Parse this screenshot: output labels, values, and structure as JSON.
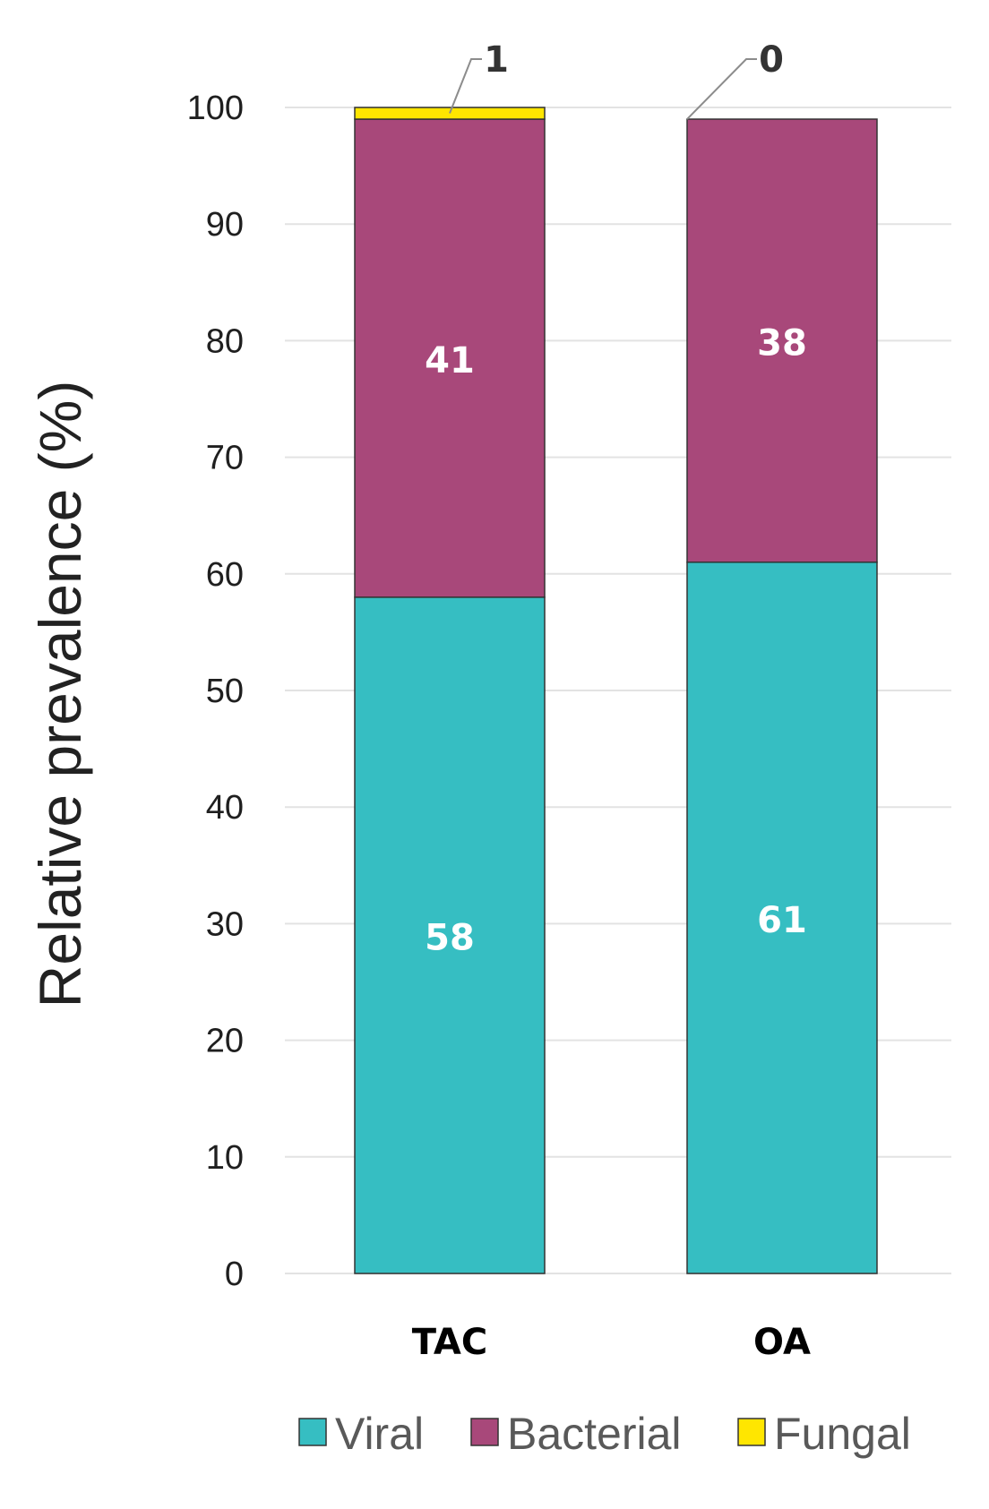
{
  "chart_data": {
    "type": "bar",
    "stacked": true,
    "title": "",
    "xlabel": "",
    "ylabel": "Relative prevalence (%)",
    "ylim": [
      0,
      100
    ],
    "yticks": [
      0,
      10,
      20,
      30,
      40,
      50,
      60,
      70,
      80,
      90,
      100
    ],
    "grid": true,
    "legend_position": "bottom",
    "categories": [
      "TAC",
      "OA"
    ],
    "series": [
      {
        "name": "Viral",
        "values": [
          58,
          61
        ],
        "color": "#36bec2"
      },
      {
        "name": "Bacterial",
        "values": [
          41,
          38
        ],
        "color": "#a8487a"
      },
      {
        "name": "Fungal",
        "values": [
          1,
          0
        ],
        "color": "#ffe600"
      }
    ],
    "callouts": [
      "1",
      "0"
    ]
  }
}
